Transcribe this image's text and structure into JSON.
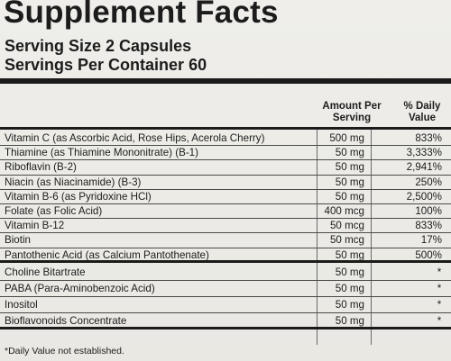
{
  "label": {
    "title": "Supplement Facts",
    "serving_size": "Serving Size 2 Capsules",
    "servings_per_container": "Servings Per Container 60",
    "col_amount": "Amount Per",
    "col_amount_2": "Serving",
    "col_dv": "% Daily",
    "col_dv_2": "Value",
    "footnote": "*Daily Value not established."
  },
  "vitamins": [
    {
      "name": "Vitamin C (as Ascorbic Acid, Rose Hips, Acerola Cherry)",
      "amount": "500 mg",
      "dv": "833%"
    },
    {
      "name": "Thiamine (as Thiamine Mononitrate) (B-1)",
      "amount": "50 mg",
      "dv": "3,333%"
    },
    {
      "name": "Riboflavin (B-2)",
      "amount": "50 mg",
      "dv": "2,941%"
    },
    {
      "name": "Niacin (as Niacinamide) (B-3)",
      "amount": "50 mg",
      "dv": "250%"
    },
    {
      "name": "Vitamin B-6 (as Pyridoxine HCl)",
      "amount": "50 mg",
      "dv": "2,500%"
    },
    {
      "name": "Folate (as Folic Acid)",
      "amount": "400 mcg",
      "dv": "100%"
    },
    {
      "name": "Vitamin B-12",
      "amount": "50 mcg",
      "dv": "833%"
    },
    {
      "name": "Biotin",
      "amount": "50 mcg",
      "dv": "17%"
    },
    {
      "name": "Pantothenic Acid (as Calcium Pantothenate)",
      "amount": "50 mg",
      "dv": "500%"
    }
  ],
  "others": [
    {
      "name": "Choline Bitartrate",
      "amount": "50 mg",
      "dv": "*"
    },
    {
      "name": "PABA (Para-Aminobenzoic Acid)",
      "amount": "50 mg",
      "dv": "*"
    },
    {
      "name": "Inositol",
      "amount": "50 mg",
      "dv": "*"
    },
    {
      "name": "Bioflavonoids Concentrate",
      "amount": "50 mg",
      "dv": "*"
    }
  ]
}
